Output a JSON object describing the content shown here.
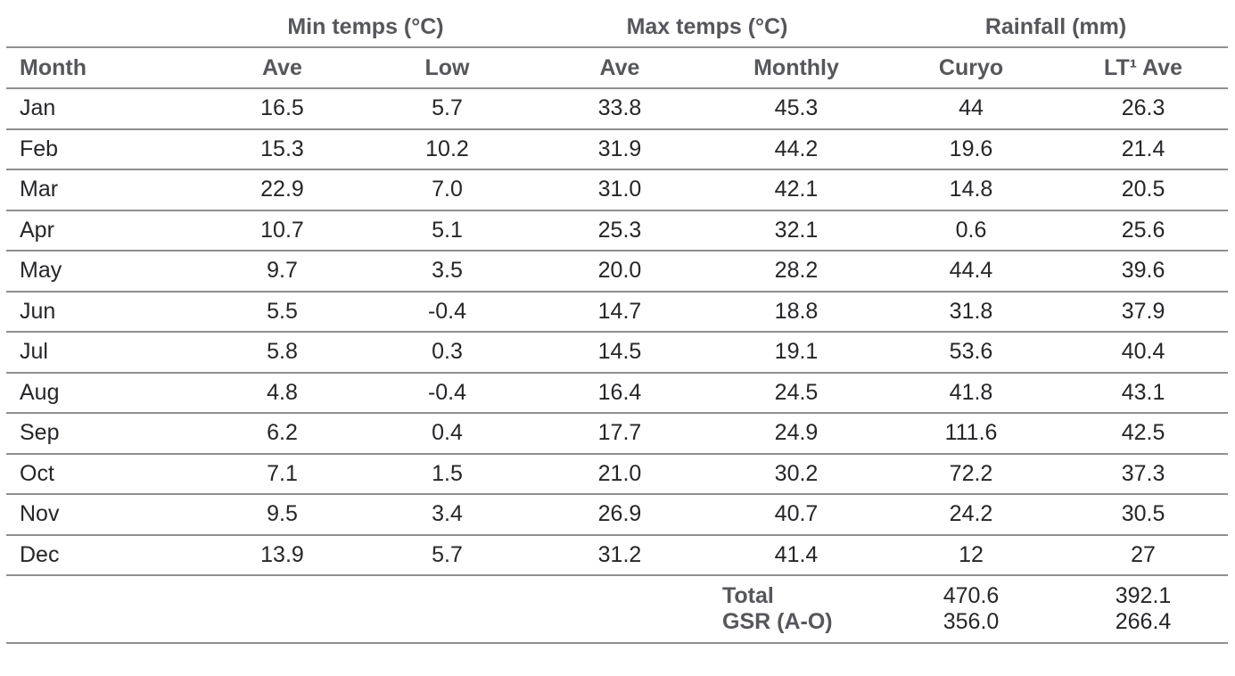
{
  "chart_data": {
    "type": "table",
    "group_headers": [
      {
        "label": "",
        "span": 1
      },
      {
        "label": "Min temps (°C)",
        "span": 2
      },
      {
        "label": "Max temps (°C)",
        "span": 2
      },
      {
        "label": "Rainfall (mm)",
        "span": 2
      }
    ],
    "columns": [
      "Month",
      "Ave",
      "Low",
      "Ave",
      "Monthly",
      "Curyo",
      "LT¹ Ave"
    ],
    "rows": [
      [
        "Jan",
        "16.5",
        "5.7",
        "33.8",
        "45.3",
        "44",
        "26.3"
      ],
      [
        "Feb",
        "15.3",
        "10.2",
        "31.9",
        "44.2",
        "19.6",
        "21.4"
      ],
      [
        "Mar",
        "22.9",
        "7.0",
        "31.0",
        "42.1",
        "14.8",
        "20.5"
      ],
      [
        "Apr",
        "10.7",
        "5.1",
        "25.3",
        "32.1",
        "0.6",
        "25.6"
      ],
      [
        "May",
        "9.7",
        "3.5",
        "20.0",
        "28.2",
        "44.4",
        "39.6"
      ],
      [
        "Jun",
        "5.5",
        "-0.4",
        "14.7",
        "18.8",
        "31.8",
        "37.9"
      ],
      [
        "Jul",
        "5.8",
        "0.3",
        "14.5",
        "19.1",
        "53.6",
        "40.4"
      ],
      [
        "Aug",
        "4.8",
        "-0.4",
        "16.4",
        "24.5",
        "41.8",
        "43.1"
      ],
      [
        "Sep",
        "6.2",
        "0.4",
        "17.7",
        "24.9",
        "111.6",
        "42.5"
      ],
      [
        "Oct",
        "7.1",
        "1.5",
        "21.0",
        "30.2",
        "72.2",
        "37.3"
      ],
      [
        "Nov",
        "9.5",
        "3.4",
        "26.9",
        "40.7",
        "24.2",
        "30.5"
      ],
      [
        "Dec",
        "13.9",
        "5.7",
        "31.2",
        "41.4",
        "12",
        "27"
      ]
    ],
    "footer_rows": [
      {
        "label": "Total",
        "values": [
          "470.6",
          "392.1"
        ]
      },
      {
        "label": "GSR (A-O)",
        "values": [
          "356.0",
          "266.4"
        ]
      }
    ]
  },
  "colors": {
    "header_text": "#56575c",
    "body_text": "#26262a",
    "rule": "#8e8f91",
    "background": "#ffffff"
  }
}
